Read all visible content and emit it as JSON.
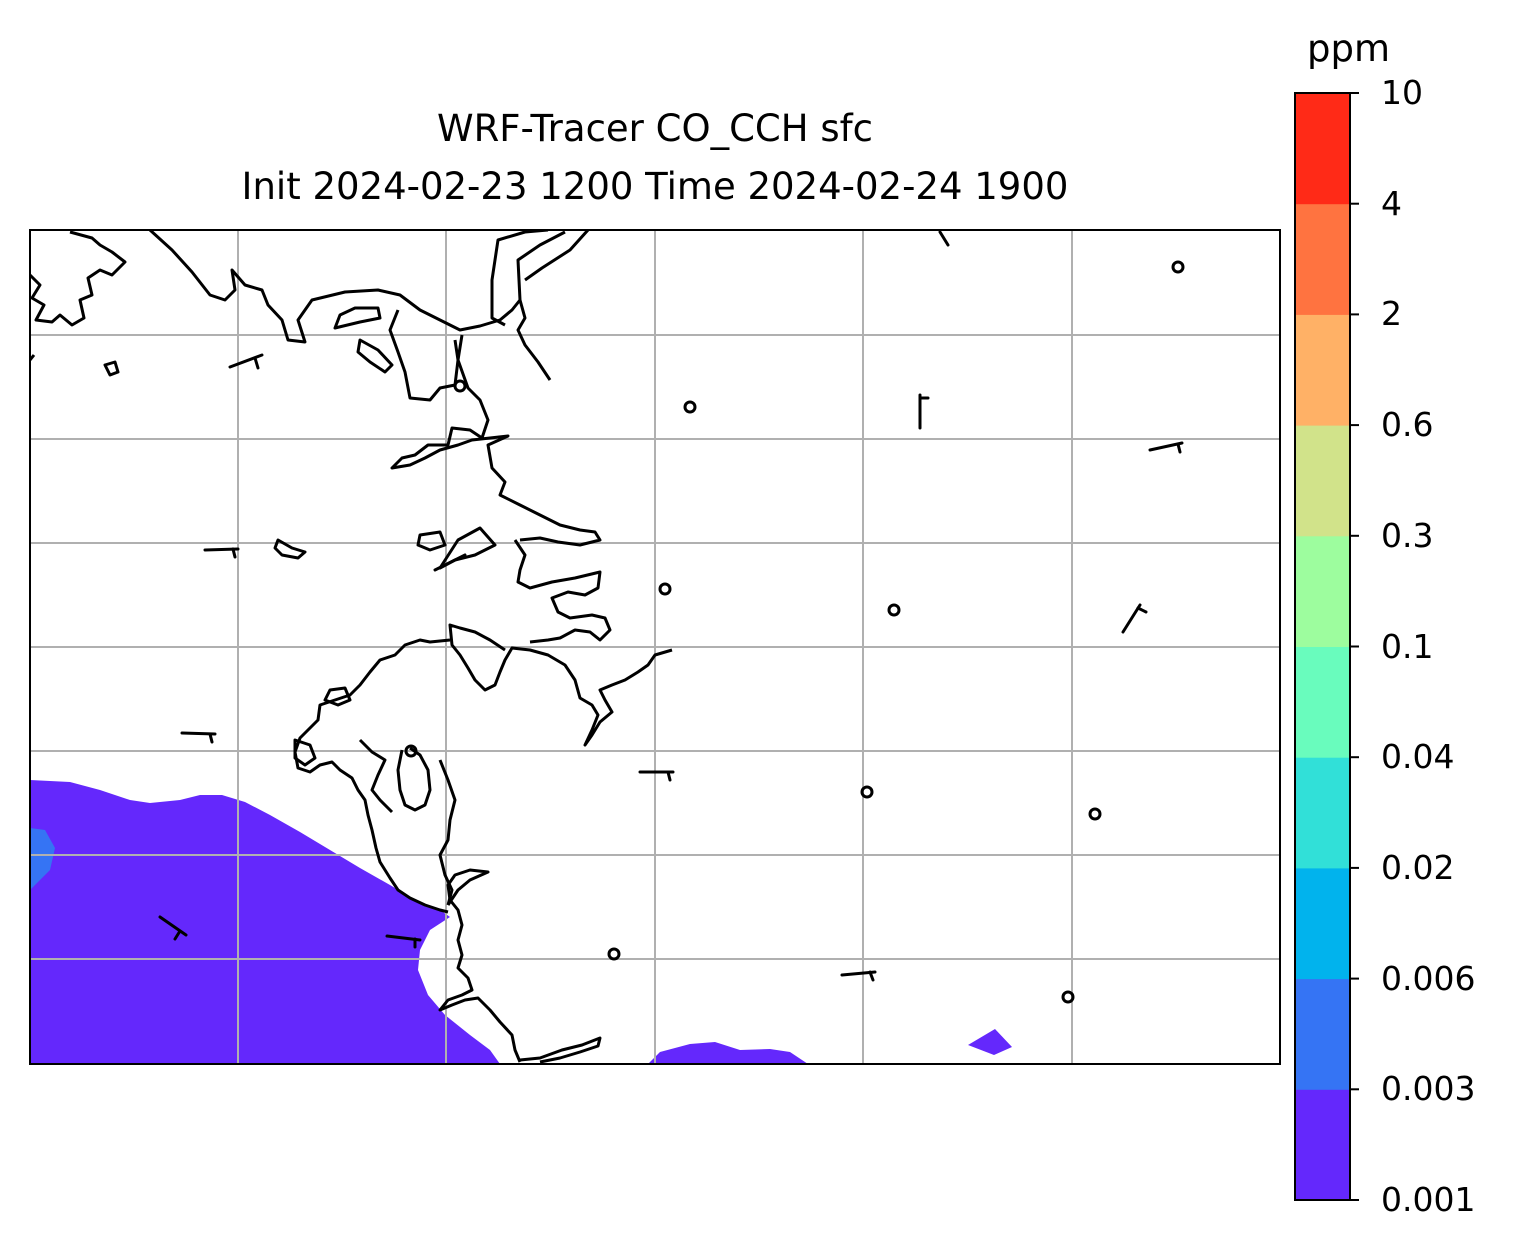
{
  "title": {
    "line1": "WRF-Tracer CO_CCH sfc",
    "line2": "Init 2024-02-23 1200 Time 2024-02-24 1900"
  },
  "colorbar": {
    "unit": "ppm",
    "ticks": [
      "0.001",
      "0.003",
      "0.006",
      "0.02",
      "0.04",
      "0.1",
      "0.3",
      "0.6",
      "2",
      "4",
      "10"
    ],
    "colors": [
      "#6428fc",
      "#3574f4",
      "#01b3ed",
      "#31e0d8",
      "#69fcbd",
      "#9dfd9e",
      "#d1e38a",
      "#ffb166",
      "#ff7340",
      "#ff2a17"
    ]
  },
  "chart_data": {
    "type": "map",
    "field": "surface CO tracer concentration",
    "grid": true,
    "shaded_regions": [
      {
        "level": "0.001-0.003",
        "color": "#6428fc",
        "location": "southwest coast and lower left"
      },
      {
        "level": "0.003-0.006",
        "color": "#3574f4",
        "location": "left edge"
      },
      {
        "level": "0.001-0.003",
        "color": "#6428fc",
        "location": "bottom center"
      },
      {
        "level": "0.001-0.003",
        "color": "#6428fc",
        "location": "small patch, lower right"
      }
    ],
    "overlays": [
      "coastlines",
      "wind barbs",
      "calm wind circles"
    ]
  }
}
